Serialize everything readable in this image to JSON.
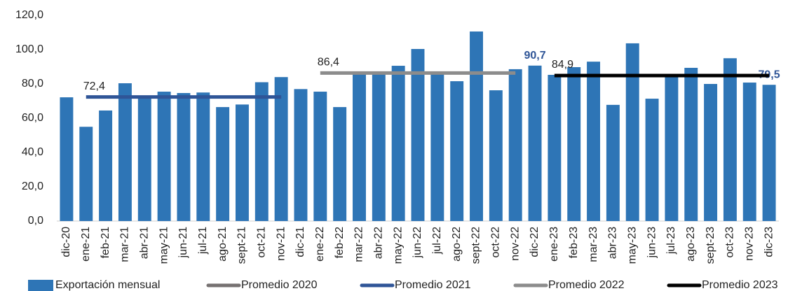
{
  "chart_data": {
    "type": "bar",
    "categories": [
      "dic-20",
      "ene-21",
      "feb-21",
      "mar-21",
      "abr-21",
      "may-21",
      "jun-21",
      "jul-21",
      "ago-21",
      "sept-21",
      "oct-21",
      "nov-21",
      "dic-21",
      "ene-22",
      "feb-22",
      "mar-22",
      "abr-22",
      "may-22",
      "jun-22",
      "jul-22",
      "ago-22",
      "sept-22",
      "oct-22",
      "nov-22",
      "dic-22",
      "ene-23",
      "feb-23",
      "mar-23",
      "abr-23",
      "may-23",
      "jun-23",
      "jul-23",
      "ago-23",
      "sept-23",
      "oct-23",
      "nov-23",
      "dic-23"
    ],
    "series": [
      {
        "name": "Exportación mensual",
        "color": "#2e75b6",
        "type": "bar",
        "values": [
          72.2,
          55,
          64.5,
          80.4,
          73,
          75.5,
          74.7,
          75,
          66.5,
          68,
          81,
          84,
          77,
          75.5,
          66.5,
          87,
          87,
          90.6,
          100.4,
          87,
          81.6,
          110.6,
          76.3,
          88.6,
          90.7,
          85.3,
          89.8,
          93,
          67.8,
          103.7,
          71.4,
          85,
          89.4,
          80,
          95,
          80.8,
          79.5
        ],
        "value_labels": [
          null,
          null,
          null,
          null,
          null,
          null,
          null,
          null,
          null,
          null,
          null,
          null,
          null,
          null,
          null,
          null,
          null,
          null,
          null,
          null,
          null,
          null,
          null,
          null,
          "90,7",
          null,
          null,
          null,
          null,
          null,
          null,
          null,
          null,
          null,
          null,
          null,
          "79,5"
        ]
      },
      {
        "name": "Promedio 2020",
        "color": "#767171",
        "type": "line",
        "values": [
          null,
          null,
          null,
          null,
          null,
          null,
          null,
          null,
          null,
          null,
          null,
          null,
          null,
          null,
          null,
          null,
          null,
          null,
          null,
          null,
          null,
          null,
          null,
          null,
          null,
          null,
          null,
          null,
          null,
          null,
          null,
          null,
          null,
          null,
          null,
          null,
          null
        ]
      },
      {
        "name": "Promedio 2021",
        "color": "#2f5597",
        "type": "line",
        "values": [
          null,
          72.4,
          72.4,
          72.4,
          72.4,
          72.4,
          72.4,
          72.4,
          72.4,
          72.4,
          72.4,
          72.4,
          null,
          null,
          null,
          null,
          null,
          null,
          null,
          null,
          null,
          null,
          null,
          null,
          null,
          null,
          null,
          null,
          null,
          null,
          null,
          null,
          null,
          null,
          null,
          null,
          null
        ],
        "value_labels": [
          null,
          "72,4",
          null,
          null,
          null,
          null,
          null,
          null,
          null,
          null,
          null,
          null,
          null,
          null,
          null,
          null,
          null,
          null,
          null,
          null,
          null,
          null,
          null,
          null,
          null,
          null,
          null,
          null,
          null,
          null,
          null,
          null,
          null,
          null,
          null,
          null,
          null
        ]
      },
      {
        "name": "Promedio 2022",
        "color": "#8c8c8c",
        "type": "line",
        "values": [
          null,
          null,
          null,
          null,
          null,
          null,
          null,
          null,
          null,
          null,
          null,
          null,
          null,
          86.4,
          86.4,
          86.4,
          86.4,
          86.4,
          86.4,
          86.4,
          86.4,
          86.4,
          86.4,
          86.4,
          null,
          null,
          null,
          null,
          null,
          null,
          null,
          null,
          null,
          null,
          null,
          null,
          null
        ],
        "value_labels": [
          null,
          null,
          null,
          null,
          null,
          null,
          null,
          null,
          null,
          null,
          null,
          null,
          null,
          "86,4",
          null,
          null,
          null,
          null,
          null,
          null,
          null,
          null,
          null,
          null,
          null,
          null,
          null,
          null,
          null,
          null,
          null,
          null,
          null,
          null,
          null,
          null,
          null
        ]
      },
      {
        "name": "Promedio 2023",
        "color": "#000000",
        "type": "line",
        "values": [
          null,
          null,
          null,
          null,
          null,
          null,
          null,
          null,
          null,
          null,
          null,
          null,
          null,
          null,
          null,
          null,
          null,
          null,
          null,
          null,
          null,
          null,
          null,
          null,
          null,
          84.9,
          84.9,
          84.9,
          84.9,
          84.9,
          84.9,
          84.9,
          84.9,
          84.9,
          84.9,
          84.9,
          84.9
        ],
        "value_labels": [
          null,
          null,
          null,
          null,
          null,
          null,
          null,
          null,
          null,
          null,
          null,
          null,
          null,
          null,
          null,
          null,
          null,
          null,
          null,
          null,
          null,
          null,
          null,
          null,
          null,
          "84,9",
          null,
          null,
          null,
          null,
          null,
          null,
          null,
          null,
          null,
          null,
          null
        ]
      }
    ],
    "ylim": [
      0,
      120
    ],
    "yticks": [
      {
        "value": 0,
        "label": "0,0"
      },
      {
        "value": 20,
        "label": "20,0"
      },
      {
        "value": 40,
        "label": "40,0"
      },
      {
        "value": 60,
        "label": "60,0"
      },
      {
        "value": 80,
        "label": "80,0"
      },
      {
        "value": 100,
        "label": "100,0"
      },
      {
        "value": 120,
        "label": "120,0"
      }
    ],
    "grid": false,
    "legend": "bottom"
  }
}
